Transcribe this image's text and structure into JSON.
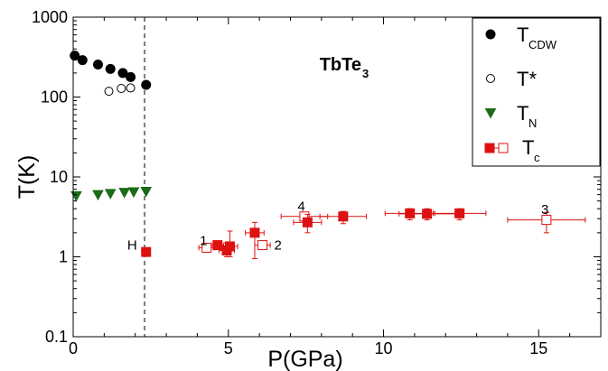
{
  "chart_data": {
    "type": "scatter",
    "title": "TbTe",
    "title_sub": "3",
    "xlabel": "P(GPa)",
    "ylabel": "T(K)",
    "xlim": [
      0,
      17
    ],
    "ylim": [
      0.1,
      1000
    ],
    "yscale": "log",
    "grid": false,
    "legend_position": "top-right",
    "x_ticks": [
      0,
      5,
      10,
      15
    ],
    "x_tick_labels": [
      "0",
      "5",
      "10",
      "15"
    ],
    "y_ticks": [
      0.1,
      1,
      10,
      100,
      1000
    ],
    "y_tick_labels": [
      "0.1",
      "1",
      "10",
      "100",
      "1000"
    ],
    "vertical_line_x": 2.3,
    "colors": {
      "black": "#000000",
      "green": "#1a6b1a",
      "red": "#dd1111"
    },
    "series": [
      {
        "name": "T",
        "sub": "CDW",
        "marker": "circle-filled",
        "color": "#000000",
        "points": [
          {
            "x": 0.05,
            "y": 330
          },
          {
            "x": 0.3,
            "y": 290
          },
          {
            "x": 0.8,
            "y": 255
          },
          {
            "x": 1.2,
            "y": 225
          },
          {
            "x": 1.6,
            "y": 200
          },
          {
            "x": 1.85,
            "y": 178
          },
          {
            "x": 2.35,
            "y": 142
          }
        ]
      },
      {
        "name": "T*",
        "sub": "",
        "marker": "circle-open",
        "color": "#000000",
        "points": [
          {
            "x": 1.15,
            "y": 118
          },
          {
            "x": 1.55,
            "y": 128
          },
          {
            "x": 1.85,
            "y": 130
          }
        ]
      },
      {
        "name": "T",
        "sub": "N",
        "marker": "triangle-down",
        "color": "#1a6b1a",
        "points": [
          {
            "x": 0.1,
            "y": 5.8
          },
          {
            "x": 0.8,
            "y": 6.0
          },
          {
            "x": 1.2,
            "y": 6.2
          },
          {
            "x": 1.65,
            "y": 6.4
          },
          {
            "x": 1.95,
            "y": 6.5
          },
          {
            "x": 2.35,
            "y": 6.6
          }
        ]
      },
      {
        "name": "T",
        "sub": "c",
        "marker": "square-mixed",
        "color": "#dd1111",
        "points": [
          {
            "x": 2.35,
            "y": 1.15,
            "fill": "filled",
            "xerr": 0,
            "ylo": 1.15,
            "yhi": 1.15
          },
          {
            "x": 4.3,
            "y": 1.3,
            "fill": "open",
            "xerr": 0.25,
            "ylo": 1.25,
            "yhi": 1.35
          },
          {
            "x": 4.65,
            "y": 1.4,
            "fill": "filled",
            "xerr": 0.2,
            "ylo": 1.3,
            "yhi": 1.5
          },
          {
            "x": 4.95,
            "y": 1.2,
            "fill": "filled",
            "xerr": 0.25,
            "ylo": 1.0,
            "yhi": 1.5
          },
          {
            "x": 5.05,
            "y": 1.35,
            "fill": "filled",
            "xerr": 0.25,
            "ylo": 1.0,
            "yhi": 2.1
          },
          {
            "x": 5.85,
            "y": 2.0,
            "fill": "filled",
            "xerr": 0.3,
            "ylo": 0.95,
            "yhi": 2.7
          },
          {
            "x": 6.1,
            "y": 1.4,
            "fill": "open",
            "xerr": 0.25,
            "ylo": 1.3,
            "yhi": 1.5
          },
          {
            "x": 7.45,
            "y": 3.2,
            "fill": "open",
            "xerr": 0.75,
            "ylo": 2.8,
            "yhi": 3.6
          },
          {
            "x": 7.55,
            "y": 2.7,
            "fill": "filled",
            "xerr": 0.45,
            "ylo": 2.0,
            "yhi": 3.4
          },
          {
            "x": 8.7,
            "y": 3.2,
            "fill": "filled",
            "xerr": 0.75,
            "ylo": 2.6,
            "yhi": 3.7
          },
          {
            "x": 10.85,
            "y": 3.5,
            "fill": "filled",
            "xerr": 0.8,
            "ylo": 2.9,
            "yhi": 4.0
          },
          {
            "x": 11.4,
            "y": 3.45,
            "fill": "filled",
            "xerr": 0.9,
            "ylo": 2.9,
            "yhi": 4.0
          },
          {
            "x": 12.45,
            "y": 3.5,
            "fill": "filled",
            "xerr": 0.85,
            "ylo": 2.9,
            "yhi": 4.0
          },
          {
            "x": 15.25,
            "y": 2.9,
            "fill": "open",
            "xerr": 1.25,
            "ylo": 2.0,
            "yhi": 3.6
          }
        ]
      }
    ],
    "annotations": [
      {
        "text": "H",
        "x": 1.9,
        "y": 1.4,
        "color": "#dd1111"
      },
      {
        "text": "1",
        "x": 4.2,
        "y": 1.6,
        "color": "#dd1111"
      },
      {
        "text": "2",
        "x": 6.6,
        "y": 1.4,
        "color": "#dd1111"
      },
      {
        "text": "4",
        "x": 7.35,
        "y": 4.3,
        "color": "#dd1111"
      },
      {
        "text": "3",
        "x": 15.2,
        "y": 3.9,
        "color": "#dd1111"
      }
    ]
  }
}
